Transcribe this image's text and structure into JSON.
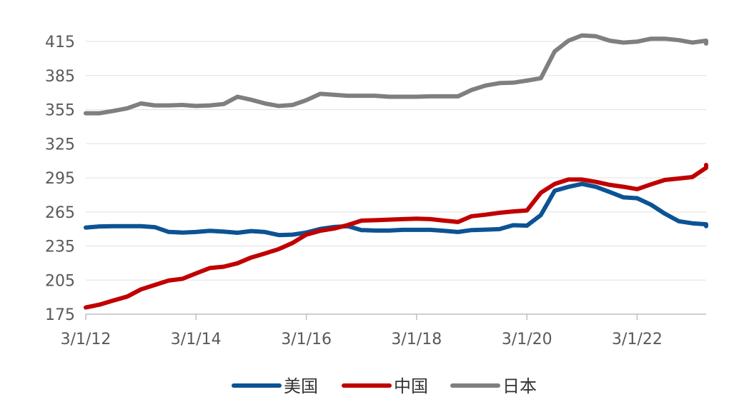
{
  "chart_data": {
    "type": "line",
    "title": "",
    "xlabel": "",
    "ylabel": "",
    "ylim": [
      175,
      425
    ],
    "yticks": [
      175,
      205,
      235,
      265,
      295,
      325,
      355,
      385,
      415
    ],
    "xlim": [
      "2012-03-01",
      "2023-06-01"
    ],
    "xtick_labels": [
      "3/1/12",
      "3/1/14",
      "3/1/16",
      "3/1/18",
      "3/1/20",
      "3/1/22"
    ],
    "xtick_dates": [
      "2012-03-01",
      "2014-03-01",
      "2016-03-01",
      "2018-03-01",
      "2020-03-01",
      "2022-03-01"
    ],
    "grid": "horizontal",
    "legend_position": "bottom",
    "series": [
      {
        "name": "美国",
        "color": "#0B5394",
        "points": [
          [
            "2012-03-01",
            251.2
          ],
          [
            "2012-06-01",
            252.2
          ],
          [
            "2012-09-01",
            252.4
          ],
          [
            "2012-12-01",
            252.4
          ],
          [
            "2013-03-01",
            252.4
          ],
          [
            "2013-06-01",
            251.6
          ],
          [
            "2013-09-01",
            247.4
          ],
          [
            "2013-12-01",
            246.8
          ],
          [
            "2014-03-01",
            247.3
          ],
          [
            "2014-06-01",
            248.4
          ],
          [
            "2014-09-01",
            247.6
          ],
          [
            "2014-12-01",
            246.6
          ],
          [
            "2015-03-01",
            248.1
          ],
          [
            "2015-06-01",
            247.3
          ],
          [
            "2015-09-01",
            244.6
          ],
          [
            "2015-12-01",
            245.0
          ],
          [
            "2016-03-01",
            246.8
          ],
          [
            "2016-06-01",
            250.0
          ],
          [
            "2016-09-01",
            251.7
          ],
          [
            "2016-12-01",
            252.4
          ],
          [
            "2017-03-01",
            249.0
          ],
          [
            "2017-06-01",
            248.6
          ],
          [
            "2017-09-01",
            248.6
          ],
          [
            "2017-12-01",
            249.2
          ],
          [
            "2018-03-01",
            249.2
          ],
          [
            "2018-06-01",
            249.2
          ],
          [
            "2018-09-01",
            248.4
          ],
          [
            "2018-12-01",
            247.3
          ],
          [
            "2019-03-01",
            249.0
          ],
          [
            "2019-06-01",
            249.4
          ],
          [
            "2019-09-01",
            249.8
          ],
          [
            "2019-12-01",
            253.3
          ],
          [
            "2020-03-01",
            252.9
          ],
          [
            "2020-06-01",
            262.2
          ],
          [
            "2020-09-01",
            283.6
          ],
          [
            "2020-12-01",
            287.0
          ],
          [
            "2021-03-01",
            289.6
          ],
          [
            "2021-06-01",
            287.0
          ],
          [
            "2021-09-01",
            282.5
          ],
          [
            "2021-12-01",
            277.8
          ],
          [
            "2022-03-01",
            277.0
          ],
          [
            "2022-06-01",
            271.3
          ],
          [
            "2022-09-01",
            263.4
          ],
          [
            "2022-12-01",
            256.8
          ],
          [
            "2023-03-01",
            255.0
          ],
          [
            "2023-06-01",
            254.1
          ],
          [
            "2023-09-01",
            252.4
          ]
        ]
      },
      {
        "name": "中国",
        "color": "#C00000",
        "points": [
          [
            "2012-03-01",
            180.9
          ],
          [
            "2012-06-01",
            183.4
          ],
          [
            "2012-09-01",
            187.1
          ],
          [
            "2012-12-01",
            190.5
          ],
          [
            "2013-03-01",
            196.8
          ],
          [
            "2013-06-01",
            200.7
          ],
          [
            "2013-09-01",
            204.6
          ],
          [
            "2013-12-01",
            206.1
          ],
          [
            "2014-03-01",
            210.9
          ],
          [
            "2014-06-01",
            215.6
          ],
          [
            "2014-09-01",
            216.8
          ],
          [
            "2014-12-01",
            219.8
          ],
          [
            "2015-03-01",
            224.8
          ],
          [
            "2015-06-01",
            228.4
          ],
          [
            "2015-09-01",
            232.3
          ],
          [
            "2015-12-01",
            237.7
          ],
          [
            "2016-03-01",
            245.0
          ],
          [
            "2016-06-01",
            248.4
          ],
          [
            "2016-09-01",
            250.3
          ],
          [
            "2016-12-01",
            253.5
          ],
          [
            "2017-03-01",
            257.3
          ],
          [
            "2017-06-01",
            257.7
          ],
          [
            "2017-09-01",
            258.2
          ],
          [
            "2017-12-01",
            258.6
          ],
          [
            "2018-03-01",
            259.0
          ],
          [
            "2018-06-01",
            258.6
          ],
          [
            "2018-09-01",
            257.3
          ],
          [
            "2018-12-01",
            256.1
          ],
          [
            "2019-03-01",
            261.2
          ],
          [
            "2019-06-01",
            262.5
          ],
          [
            "2019-09-01",
            264.2
          ],
          [
            "2019-12-01",
            265.4
          ],
          [
            "2020-03-01",
            266.3
          ],
          [
            "2020-06-01",
            281.8
          ],
          [
            "2020-09-01",
            289.6
          ],
          [
            "2020-12-01",
            293.5
          ],
          [
            "2021-03-01",
            293.5
          ],
          [
            "2021-06-01",
            291.4
          ],
          [
            "2021-09-01",
            288.8
          ],
          [
            "2021-12-01",
            287.1
          ],
          [
            "2022-03-01",
            285.0
          ],
          [
            "2022-06-01",
            289.2
          ],
          [
            "2022-09-01",
            293.1
          ],
          [
            "2022-12-01",
            294.4
          ],
          [
            "2023-03-01",
            295.6
          ],
          [
            "2023-06-01",
            303.8
          ],
          [
            "2023-09-01",
            306.3
          ]
        ]
      },
      {
        "name": "日本",
        "color": "#7F7F7F",
        "points": [
          [
            "2012-03-01",
            351.8
          ],
          [
            "2012-06-01",
            351.8
          ],
          [
            "2012-09-01",
            353.9
          ],
          [
            "2012-12-01",
            356.1
          ],
          [
            "2013-03-01",
            360.4
          ],
          [
            "2013-06-01",
            358.7
          ],
          [
            "2013-09-01",
            358.7
          ],
          [
            "2013-12-01",
            359.1
          ],
          [
            "2014-03-01",
            358.2
          ],
          [
            "2014-06-01",
            358.7
          ],
          [
            "2014-09-01",
            359.9
          ],
          [
            "2014-12-01",
            366.3
          ],
          [
            "2015-03-01",
            363.7
          ],
          [
            "2015-06-01",
            360.4
          ],
          [
            "2015-09-01",
            358.2
          ],
          [
            "2015-12-01",
            359.1
          ],
          [
            "2016-03-01",
            363.3
          ],
          [
            "2016-06-01",
            368.9
          ],
          [
            "2016-09-01",
            368.0
          ],
          [
            "2016-12-01",
            367.2
          ],
          [
            "2017-03-01",
            367.2
          ],
          [
            "2017-06-01",
            367.2
          ],
          [
            "2017-09-01",
            366.3
          ],
          [
            "2017-12-01",
            366.3
          ],
          [
            "2018-03-01",
            366.3
          ],
          [
            "2018-06-01",
            366.7
          ],
          [
            "2018-09-01",
            366.7
          ],
          [
            "2018-12-01",
            366.7
          ],
          [
            "2019-03-01",
            372.3
          ],
          [
            "2019-06-01",
            376.2
          ],
          [
            "2019-09-01",
            378.3
          ],
          [
            "2019-12-01",
            378.7
          ],
          [
            "2020-03-01",
            380.5
          ],
          [
            "2020-06-01",
            382.6
          ],
          [
            "2020-09-01",
            406.2
          ],
          [
            "2020-12-01",
            415.6
          ],
          [
            "2021-03-01",
            420.3
          ],
          [
            "2021-06-01",
            419.5
          ],
          [
            "2021-09-01",
            415.6
          ],
          [
            "2021-12-01",
            414.0
          ],
          [
            "2022-03-01",
            414.8
          ],
          [
            "2022-06-01",
            417.4
          ],
          [
            "2022-09-01",
            417.4
          ],
          [
            "2022-12-01",
            416.1
          ],
          [
            "2023-03-01",
            414.0
          ],
          [
            "2023-06-01",
            415.6
          ],
          [
            "2023-09-01",
            413.1
          ]
        ]
      }
    ]
  }
}
